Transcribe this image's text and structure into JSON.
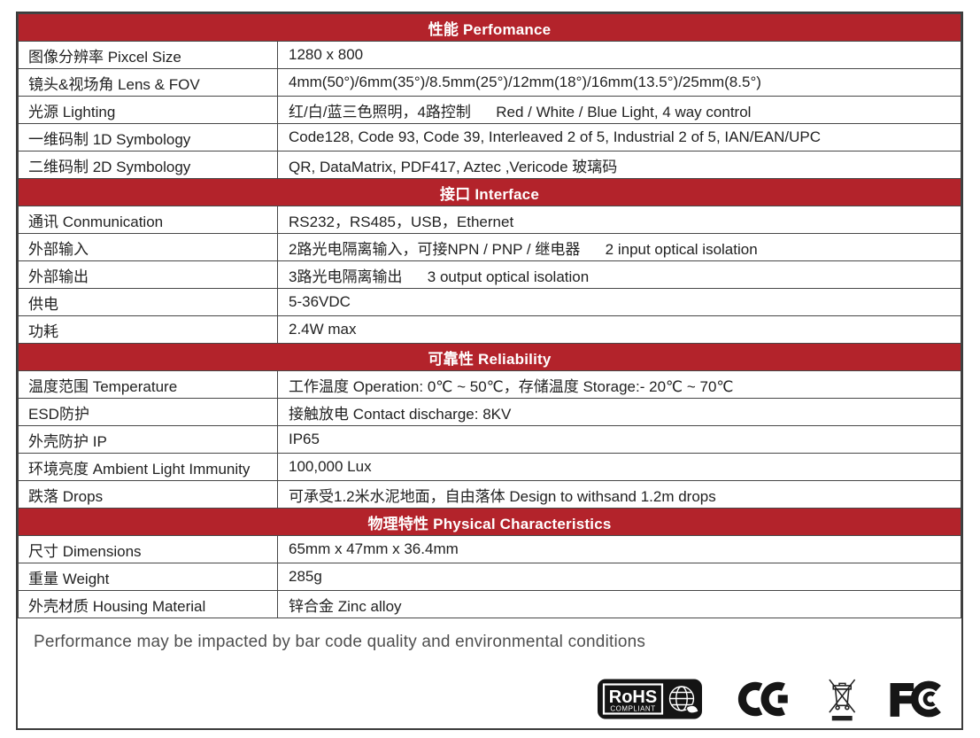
{
  "colors": {
    "header_bg": "#b3232b",
    "header_text": "#ffffff",
    "border": "#474747",
    "body_text": "#222222",
    "note_text": "#4f4f4f"
  },
  "sections": [
    {
      "title": "性能 Perfomance",
      "rows": [
        {
          "label": "图像分辨率 Pixcel Size",
          "value": "1280 x 800"
        },
        {
          "label": "镜头&视场角 Lens & FOV",
          "value": "4mm(50°)/6mm(35°)/8.5mm(25°)/12mm(18°)/16mm(13.5°)/25mm(8.5°)"
        },
        {
          "label": "光源 Lighting",
          "value": "红/白/蓝三色照明，4路控制      Red / White / Blue Light, 4 way control"
        },
        {
          "label": "一维码制 1D Symbology",
          "value": "Code128, Code 93, Code 39, Interleaved 2 of 5, Industrial 2 of 5, IAN/EAN/UPC"
        },
        {
          "label": "二维码制 2D Symbology",
          "value": "QR, DataMatrix, PDF417, Aztec ,Vericode 玻璃码"
        }
      ]
    },
    {
      "title": "接口 Interface",
      "rows": [
        {
          "label": "通讯 Conmunication",
          "value": "RS232，RS485，USB，Ethernet"
        },
        {
          "label": "外部输入",
          "value": "2路光电隔离输入，可接NPN / PNP / 继电器      2 input optical isolation"
        },
        {
          "label": "外部输出",
          "value": "3路光电隔离输出      3 output optical isolation"
        },
        {
          "label": "供电",
          "value": "5-36VDC"
        },
        {
          "label": "功耗",
          "value": "2.4W max"
        }
      ]
    },
    {
      "title": "可靠性 Reliability",
      "rows": [
        {
          "label": "温度范围 Temperature",
          "value": "工作温度 Operation: 0℃ ~ 50℃，存储温度 Storage:- 20℃ ~ 70℃"
        },
        {
          "label": "ESD防护",
          "value": "接触放电 Contact discharge: 8KV"
        },
        {
          "label": "外壳防护 IP",
          "value": "IP65"
        },
        {
          "label": "环境亮度 Ambient Light Immunity",
          "value": "100,000 Lux"
        },
        {
          "label": "跌落 Drops",
          "value": "可承受1.2米水泥地面，自由落体 Design to withsand 1.2m drops"
        }
      ]
    },
    {
      "title": "物理特性 Physical Characteristics",
      "rows": [
        {
          "label": "尺寸 Dimensions",
          "value": "65mm x 47mm x 36.4mm"
        },
        {
          "label": "重量 Weight",
          "value": "285g"
        },
        {
          "label": "外壳材质 Housing Material",
          "value": "锌合金 Zinc alloy"
        }
      ]
    }
  ],
  "footer": {
    "note": "Performance may be impacted by bar code quality and environmental conditions",
    "logos": {
      "rohs_title": "RoHS",
      "rohs_subtitle": "COMPLIANT",
      "ce": "CE mark",
      "weee": "WEEE crossed-out bin",
      "fcc": "FCC mark"
    }
  }
}
